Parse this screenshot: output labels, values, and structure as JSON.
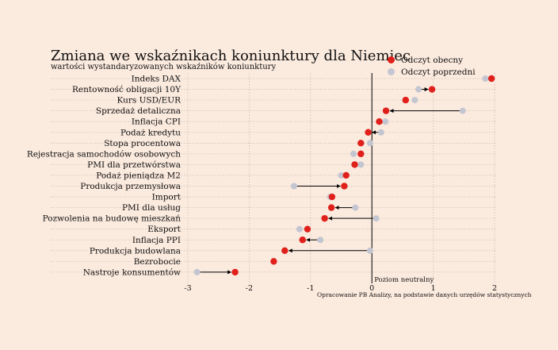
{
  "chart_data": {
    "type": "dot-arrow",
    "title": "Zmiana we wskaźnikach koniunktury dla Niemiec",
    "subtitle": "wartości wystandaryzowanych wskaźników koniunktury",
    "source": "Opracowanie PB Analizy, na podstawie danych urzędów statystycznych",
    "reference_label": "Poziom neutralny",
    "xlim": [
      -3,
      2
    ],
    "xticks": [
      "-3",
      "-2",
      "-1",
      "0",
      "1",
      "2"
    ],
    "grid": true,
    "legend_position": "top-right",
    "series": [
      {
        "name": "Odczyt obecny",
        "color": "#e0201b"
      },
      {
        "name": "Odczyt poprzedni",
        "color": "#c3c6d1"
      }
    ],
    "categories": [
      "Indeks DAX",
      "Rentowność obligacji 10Y",
      "Kurs USD/EUR",
      "Sprzedaż detaliczna",
      "Inflacja CPI",
      "Podaż kredytu",
      "Stopa procentowa",
      "Rejestracja samochodów osobowych",
      "PMI dla przetwórstwa",
      "Podaż pieniądza M2",
      "Produkcja przemysłowa",
      "Import",
      "PMI dla usług",
      "Pozwolenia na budowę mieszkań",
      "Eksport",
      "Inflacja PPI",
      "Produkcja budowlana",
      "Bezrobocie",
      "Nastroje konsumentów"
    ],
    "current": [
      1.95,
      0.98,
      0.55,
      0.23,
      0.12,
      -0.06,
      -0.18,
      -0.18,
      -0.28,
      -0.42,
      -0.45,
      -0.65,
      -0.66,
      -0.77,
      -1.05,
      -1.13,
      -1.42,
      -1.6,
      -2.23
    ],
    "previous": [
      1.85,
      0.76,
      0.7,
      1.48,
      0.22,
      0.15,
      -0.03,
      -0.3,
      -0.18,
      -0.5,
      -1.27,
      -0.68,
      -0.27,
      0.07,
      -1.18,
      -0.84,
      -0.03,
      -1.6,
      -2.85
    ]
  }
}
